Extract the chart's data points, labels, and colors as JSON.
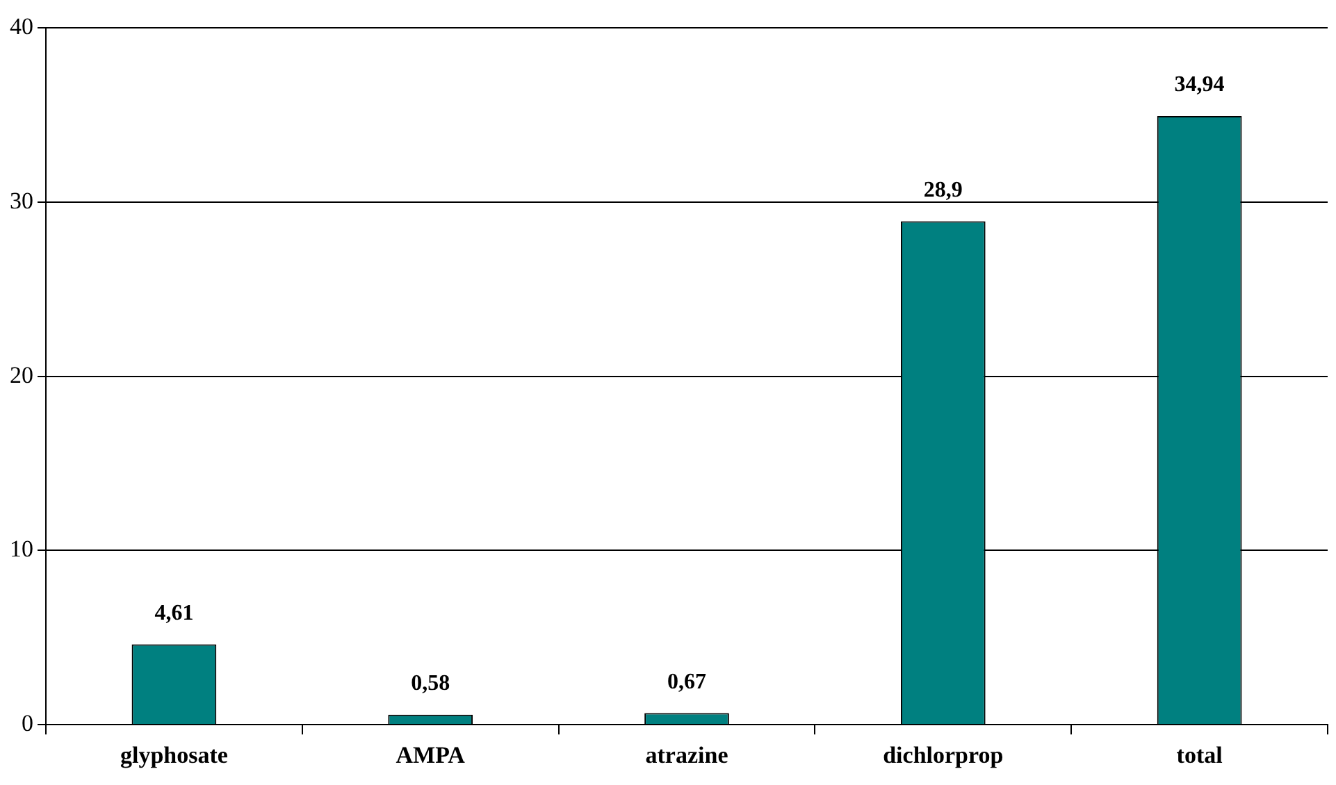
{
  "chart_data": {
    "type": "bar",
    "categories": [
      "glyphosate",
      "AMPA",
      "atrazine",
      "dichlorprop",
      "total"
    ],
    "values": [
      4.61,
      0.58,
      0.67,
      28.9,
      34.94
    ],
    "value_labels": [
      "4,61",
      "0,58",
      "0,67",
      "28,9",
      "34,94"
    ],
    "color": "#008080",
    "ylim": [
      0,
      40
    ],
    "yticks": [
      0,
      10,
      20,
      30,
      40
    ],
    "grid": "y",
    "legend": false
  }
}
